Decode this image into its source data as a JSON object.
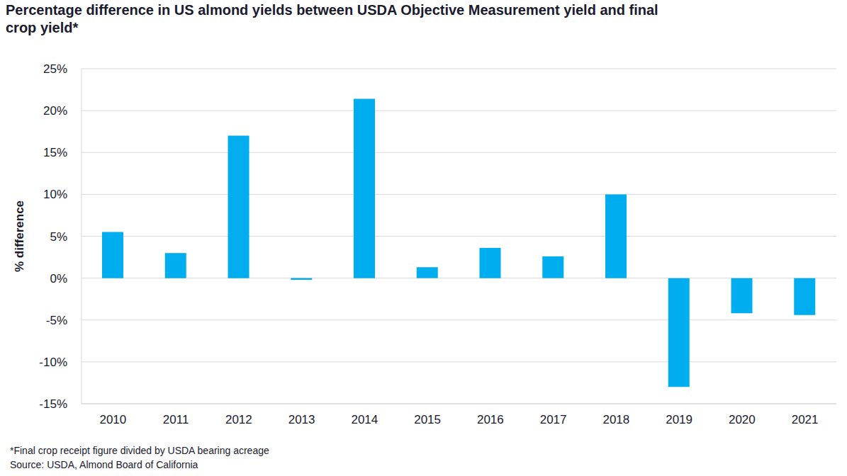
{
  "chart_data": {
    "type": "bar",
    "title": "Percentage difference in US almond yields between USDA Objective Measurement yield and final crop yield*",
    "y_label": "% difference",
    "categories": [
      "2010",
      "2011",
      "2012",
      "2013",
      "2014",
      "2015",
      "2016",
      "2017",
      "2018",
      "2019",
      "2020",
      "2021"
    ],
    "values": [
      5.5,
      3.0,
      17.0,
      -0.2,
      21.4,
      1.3,
      3.6,
      2.6,
      10.0,
      -13.0,
      -4.2,
      -4.4
    ],
    "color": "#00aeef",
    "ylim": [
      -15,
      25
    ],
    "yticks": [
      {
        "value": -15,
        "label": "-15%"
      },
      {
        "value": -10,
        "label": "-10%"
      },
      {
        "value": -5,
        "label": "-5%"
      },
      {
        "value": 0,
        "label": "0%"
      },
      {
        "value": 5,
        "label": "5%"
      },
      {
        "value": 10,
        "label": "10%"
      },
      {
        "value": 15,
        "label": "15%"
      },
      {
        "value": 20,
        "label": "20%"
      },
      {
        "value": 25,
        "label": "25%"
      }
    ],
    "grid": true,
    "notes": [
      "*Final crop receipt figure divided by USDA bearing acreage",
      "Source: USDA, Almond Board of California"
    ]
  }
}
